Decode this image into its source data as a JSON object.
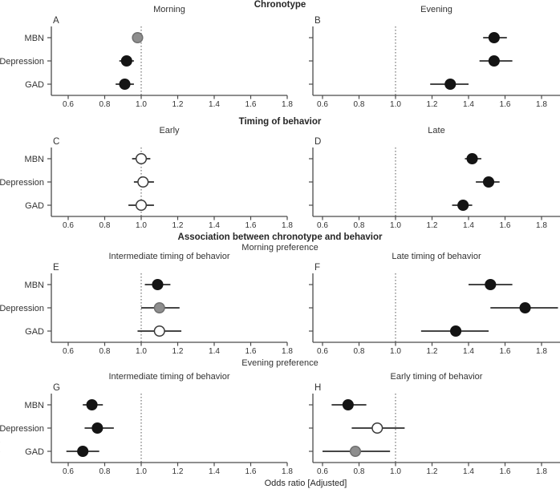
{
  "figure": {
    "section_headers": {
      "chronotype": "Chronotype",
      "timing": "Timing of behavior",
      "association": "Association between chronotype and behavior",
      "morning_preference": "Morning preference",
      "evening_preference": "Evening preference"
    },
    "xlabel": "Odds ratio [Adjusted]",
    "row_labels": [
      "MBN",
      "Depression",
      "GAD"
    ],
    "edge_artifact": "(",
    "colors": {
      "point_black": "#141414",
      "point_gray": "#8e8e8e",
      "point_gray_stroke": "#6f6f6f",
      "point_white": "#ffffff",
      "point_white_stroke": "#3a3a3a",
      "axis": "#4a4a4a",
      "ref_line": "#555555",
      "ci_line": "#2b2b2b",
      "text": "#333333"
    }
  },
  "chart_data": [
    {
      "type": "scatter",
      "letter": "A",
      "title": "Morning",
      "section": "Chronotype",
      "categories": [
        "MBN",
        "Depression",
        "GAD"
      ],
      "or": [
        0.98,
        0.92,
        0.91
      ],
      "ci_low": [
        0.95,
        0.88,
        0.86
      ],
      "ci_high": [
        1.01,
        0.96,
        0.96
      ],
      "point_fill": [
        "gray",
        "black",
        "black"
      ],
      "xticks": [
        0.6,
        0.8,
        1.0,
        1.2,
        1.4,
        1.6,
        1.8
      ],
      "xlim": [
        0.5,
        1.9
      ],
      "ref_line": 1.0
    },
    {
      "type": "scatter",
      "letter": "B",
      "title": "Evening",
      "section": "Chronotype",
      "categories": [
        "MBN",
        "Depression",
        "GAD"
      ],
      "or": [
        1.54,
        1.54,
        1.3
      ],
      "ci_low": [
        1.48,
        1.46,
        1.19
      ],
      "ci_high": [
        1.61,
        1.64,
        1.4
      ],
      "point_fill": [
        "black",
        "black",
        "black"
      ],
      "xticks": [
        0.6,
        0.8,
        1.0,
        1.2,
        1.4,
        1.6,
        1.8
      ],
      "xlim": [
        0.5,
        1.9
      ],
      "ref_line": 1.0
    },
    {
      "type": "scatter",
      "letter": "C",
      "title": "Early",
      "section": "Timing of behavior",
      "categories": [
        "MBN",
        "Depression",
        "GAD"
      ],
      "or": [
        1.0,
        1.01,
        1.0
      ],
      "ci_low": [
        0.95,
        0.96,
        0.93
      ],
      "ci_high": [
        1.05,
        1.07,
        1.07
      ],
      "point_fill": [
        "white",
        "white",
        "white"
      ],
      "xticks": [
        0.6,
        0.8,
        1.0,
        1.2,
        1.4,
        1.6,
        1.8
      ],
      "xlim": [
        0.5,
        1.9
      ],
      "ref_line": 1.0
    },
    {
      "type": "scatter",
      "letter": "D",
      "title": "Late",
      "section": "Timing of behavior",
      "categories": [
        "MBN",
        "Depression",
        "GAD"
      ],
      "or": [
        1.42,
        1.51,
        1.37
      ],
      "ci_low": [
        1.38,
        1.44,
        1.31
      ],
      "ci_high": [
        1.47,
        1.57,
        1.42
      ],
      "point_fill": [
        "black",
        "black",
        "black"
      ],
      "xticks": [
        0.6,
        0.8,
        1.0,
        1.2,
        1.4,
        1.6,
        1.8
      ],
      "xlim": [
        0.5,
        1.9
      ],
      "ref_line": 1.0
    },
    {
      "type": "scatter",
      "letter": "E",
      "title": "Intermediate timing of behavior",
      "section": "Association between chronotype and behavior - Morning preference",
      "categories": [
        "MBN",
        "Depression",
        "GAD"
      ],
      "or": [
        1.09,
        1.1,
        1.1
      ],
      "ci_low": [
        1.02,
        1.0,
        0.98
      ],
      "ci_high": [
        1.16,
        1.21,
        1.22
      ],
      "point_fill": [
        "black",
        "gray",
        "white"
      ],
      "xticks": [
        0.6,
        0.8,
        1.0,
        1.2,
        1.4,
        1.6,
        1.8
      ],
      "xlim": [
        0.5,
        1.9
      ],
      "ref_line": 1.0
    },
    {
      "type": "scatter",
      "letter": "F",
      "title": "Late timing of behavior",
      "section": "Association between chronotype and behavior - Morning preference",
      "categories": [
        "MBN",
        "Depression",
        "GAD"
      ],
      "or": [
        1.52,
        1.71,
        1.33
      ],
      "ci_low": [
        1.4,
        1.52,
        1.14
      ],
      "ci_high": [
        1.64,
        1.89,
        1.51
      ],
      "point_fill": [
        "black",
        "black",
        "black"
      ],
      "xticks": [
        0.6,
        0.8,
        1.0,
        1.2,
        1.4,
        1.6,
        1.8
      ],
      "xlim": [
        0.5,
        1.9
      ],
      "ref_line": 1.0
    },
    {
      "type": "scatter",
      "letter": "G",
      "title": "Intermediate timing of behavior",
      "section": "Association between chronotype and behavior - Evening preference",
      "categories": [
        "MBN",
        "Depression",
        "GAD"
      ],
      "or": [
        0.73,
        0.76,
        0.68
      ],
      "ci_low": [
        0.68,
        0.69,
        0.59
      ],
      "ci_high": [
        0.79,
        0.85,
        0.77
      ],
      "point_fill": [
        "black",
        "black",
        "black"
      ],
      "xticks": [
        0.6,
        0.8,
        1.0,
        1.2,
        1.4,
        1.6,
        1.8
      ],
      "xlim": [
        0.5,
        1.9
      ],
      "ref_line": 1.0
    },
    {
      "type": "scatter",
      "letter": "H",
      "title": "Early timing of behavior",
      "section": "Association between chronotype and behavior - Evening preference",
      "categories": [
        "MBN",
        "Depression",
        "GAD"
      ],
      "or": [
        0.74,
        0.9,
        0.78
      ],
      "ci_low": [
        0.65,
        0.76,
        0.6
      ],
      "ci_high": [
        0.84,
        1.05,
        0.97
      ],
      "point_fill": [
        "black",
        "white",
        "gray"
      ],
      "xticks": [
        0.6,
        0.8,
        1.0,
        1.2,
        1.4,
        1.6,
        1.8
      ],
      "xlim": [
        0.5,
        1.9
      ],
      "ref_line": 1.0
    }
  ]
}
